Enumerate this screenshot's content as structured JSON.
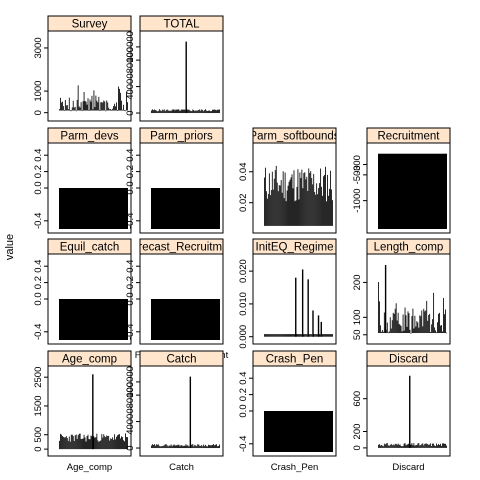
{
  "figure": {
    "ylabel": "value",
    "strip_fill": "#ffe5cc",
    "bar_color": "#000000"
  },
  "chart_data": [
    {
      "type": "bar",
      "title": "Survey",
      "xlabel": "Survey",
      "ylim": [
        -200,
        3600
      ],
      "yticks": [
        0,
        1000,
        3000
      ],
      "pattern": "spikes",
      "base": 100,
      "spike_max": 1000,
      "n": 70,
      "seed": 3
    },
    {
      "type": "bar",
      "title": "TOTAL",
      "xlabel": "TOTAL",
      "ylim": [
        -6000,
        118000
      ],
      "yticks": [
        0,
        40000,
        80000,
        100000
      ],
      "pattern": "one_spike",
      "base": 2500,
      "noise": 3500,
      "peak": 108000,
      "n": 70,
      "peak_at": 0.5,
      "seed": 5
    },
    null,
    null,
    {
      "type": "bar",
      "title": "Parm_devs",
      "xlabel": "Parm_devs",
      "ylim": [
        -0.5,
        0.5
      ],
      "yticks": [
        -0.4,
        0,
        0.2,
        0.4
      ],
      "ytick_labels": [
        "-0.4",
        "0.0",
        "0.2",
        "0.4"
      ],
      "pattern": "flat",
      "value": 0
    },
    {
      "type": "bar",
      "title": "Parm_priors",
      "xlabel": "Parm_priors",
      "ylim": [
        -0.5,
        0.5
      ],
      "yticks": [
        -0.4,
        0,
        0.2,
        0.4
      ],
      "ytick_labels": [
        "-0.4",
        "0.0",
        "0.2",
        "0.4"
      ],
      "pattern": "flat",
      "value": 0
    },
    {
      "type": "bar",
      "title": "Parm_softbounds",
      "xlabel": "Parm_softbounds",
      "ylim": [
        0.003,
        0.056
      ],
      "yticks": [
        0.02,
        0.04
      ],
      "pattern": "noisy",
      "base": 0.005,
      "low": 0.02,
      "high": 0.045,
      "n": 70,
      "seed": 11
    },
    {
      "type": "bar",
      "title": "Recruitment",
      "xlabel": "Recruitment",
      "ylim": [
        -1550,
        40
      ],
      "yticks": [
        -500,
        -300,
        -1000
      ],
      "pattern": "neg_flat",
      "value": -90,
      "base": -1550
    },
    {
      "type": "bar",
      "title": "Equil_catch",
      "xlabel": "Equil_catch",
      "ylim": [
        -0.5,
        0.5
      ],
      "yticks": [
        -0.4,
        0,
        0.2,
        0.4
      ],
      "ytick_labels": [
        "-0.4",
        "0.0",
        "0.2",
        "0.4"
      ],
      "pattern": "flat",
      "value": 0
    },
    {
      "type": "bar",
      "title": "Forecast_Recruitment",
      "xlabel": "Forecast_Recruitment",
      "ylim": [
        -0.5,
        0.5
      ],
      "yticks": [
        -0.4,
        0,
        0.2,
        0.4
      ],
      "ytick_labels": [
        "-0.4",
        "0.0",
        "0.2",
        "0.4"
      ],
      "pattern": "flat",
      "value": 0
    },
    {
      "type": "bar",
      "title": "InitEQ_Regime",
      "xlabel": "InitEQ_Regime",
      "ylim": [
        -0.001,
        0.024
      ],
      "yticks": [
        0,
        0.01,
        0.02
      ],
      "ytick_labels": [
        "0.000",
        "0.010",
        "0.020"
      ],
      "pattern": "sparse",
      "base": 0.0008,
      "spikes": [
        [
          0.45,
          0.018
        ],
        [
          0.55,
          0.0205
        ],
        [
          0.63,
          0.0175
        ],
        [
          0.7,
          0.008
        ],
        [
          0.78,
          0.0065
        ],
        [
          0.82,
          0.0045
        ]
      ],
      "n": 70
    },
    {
      "type": "bar",
      "title": "Length_comp",
      "xlabel": "Length_comp",
      "ylim": [
        35,
        270
      ],
      "yticks": [
        50,
        100,
        200
      ],
      "pattern": "spikes",
      "base": 55,
      "spike_max": 175,
      "n": 70,
      "seed": 17,
      "peak": 250,
      "peak_at": 0.1
    },
    {
      "type": "bar",
      "title": "Age_comp",
      "xlabel": "Age_comp",
      "ylim": [
        -100,
        2750
      ],
      "yticks": [
        0,
        500,
        1500,
        2500
      ],
      "pattern": "one_spike",
      "base": 250,
      "noise": 300,
      "peak": 2600,
      "n": 70,
      "peak_at": 0.48,
      "seed": 23
    },
    {
      "type": "bar",
      "title": "Catch",
      "xlabel": "Catch",
      "ylim": [
        -6000,
        118000
      ],
      "yticks": [
        0,
        40000,
        80000,
        100000
      ],
      "pattern": "one_spike",
      "base": 2500,
      "noise": 3500,
      "peak": 108000,
      "n": 70,
      "peak_at": 0.56,
      "seed": 29
    },
    {
      "type": "bar",
      "title": "Crash_Pen",
      "xlabel": "Crash_Pen",
      "ylim": [
        -0.5,
        0.5
      ],
      "yticks": [
        -0.4,
        0,
        0.2,
        0.4
      ],
      "ytick_labels": [
        "-0.4",
        "0.0",
        "0.2",
        "0.4"
      ],
      "pattern": "flat",
      "value": 0
    },
    {
      "type": "bar",
      "title": "Discard",
      "xlabel": "Discard",
      "ylim": [
        -50,
        950
      ],
      "yticks": [
        0,
        200,
        600
      ],
      "pattern": "one_spike",
      "base": 20,
      "noise": 40,
      "peak": 880,
      "n": 70,
      "peak_at": 0.45,
      "seed": 31
    }
  ]
}
